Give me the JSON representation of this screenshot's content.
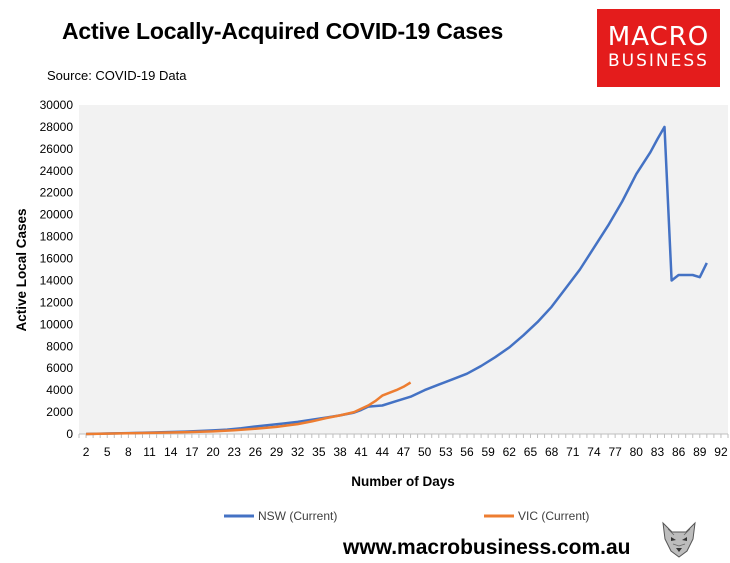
{
  "header": {
    "title": "Active Locally-Acquired COVID-19 Cases",
    "source": "Source: COVID-19 Data"
  },
  "logo": {
    "line1": "MACRO",
    "line2": "BUSINESS",
    "color": "#e41c1c"
  },
  "footer": {
    "website": "www.macrobusiness.com.au"
  },
  "chart_data": {
    "type": "line",
    "title": "Active Locally-Acquired COVID-19 Cases",
    "xlabel": "Number of Days",
    "ylabel": "Active Local Cases",
    "xlim": [
      1,
      93
    ],
    "ylim": [
      0,
      30000
    ],
    "x_ticks": [
      2,
      5,
      8,
      11,
      14,
      17,
      20,
      23,
      26,
      29,
      32,
      35,
      38,
      41,
      44,
      47,
      50,
      53,
      56,
      59,
      62,
      65,
      68,
      71,
      74,
      77,
      80,
      83,
      86,
      89,
      92
    ],
    "y_ticks": [
      0,
      2000,
      4000,
      6000,
      8000,
      10000,
      12000,
      14000,
      16000,
      18000,
      20000,
      22000,
      24000,
      26000,
      28000,
      30000
    ],
    "grid": false,
    "background": "#f2f2f2",
    "legend_position": "bottom",
    "series": [
      {
        "name": "NSW (Current)",
        "color": "#4472c4",
        "x": [
          2,
          5,
          8,
          10,
          12,
          14,
          16,
          18,
          20,
          22,
          24,
          26,
          28,
          30,
          32,
          34,
          36,
          38,
          40,
          41,
          42,
          44,
          46,
          48,
          50,
          52,
          54,
          56,
          58,
          60,
          62,
          64,
          66,
          68,
          70,
          72,
          74,
          76,
          78,
          80,
          82,
          83,
          84,
          85,
          86,
          88,
          89,
          90
        ],
        "y": [
          0,
          50,
          80,
          120,
          150,
          180,
          220,
          270,
          330,
          400,
          520,
          680,
          820,
          960,
          1100,
          1300,
          1500,
          1700,
          1950,
          2200,
          2500,
          2600,
          3000,
          3400,
          4000,
          4500,
          5000,
          5500,
          6200,
          7000,
          7900,
          9000,
          10200,
          11600,
          13300,
          15000,
          17000,
          19000,
          21200,
          23700,
          25700,
          26900,
          28000,
          14000,
          14500,
          14500,
          14300,
          15600
        ]
      },
      {
        "name": "VIC (Current)",
        "color": "#ed7d31",
        "x": [
          2,
          5,
          8,
          11,
          14,
          17,
          20,
          23,
          26,
          29,
          31,
          32,
          34,
          36,
          38,
          40,
          41,
          42,
          43,
          44,
          46,
          47,
          48
        ],
        "y": [
          0,
          40,
          70,
          100,
          140,
          180,
          240,
          340,
          480,
          650,
          820,
          900,
          1150,
          1450,
          1700,
          2000,
          2300,
          2600,
          3000,
          3500,
          4000,
          4300,
          4700
        ]
      }
    ]
  }
}
